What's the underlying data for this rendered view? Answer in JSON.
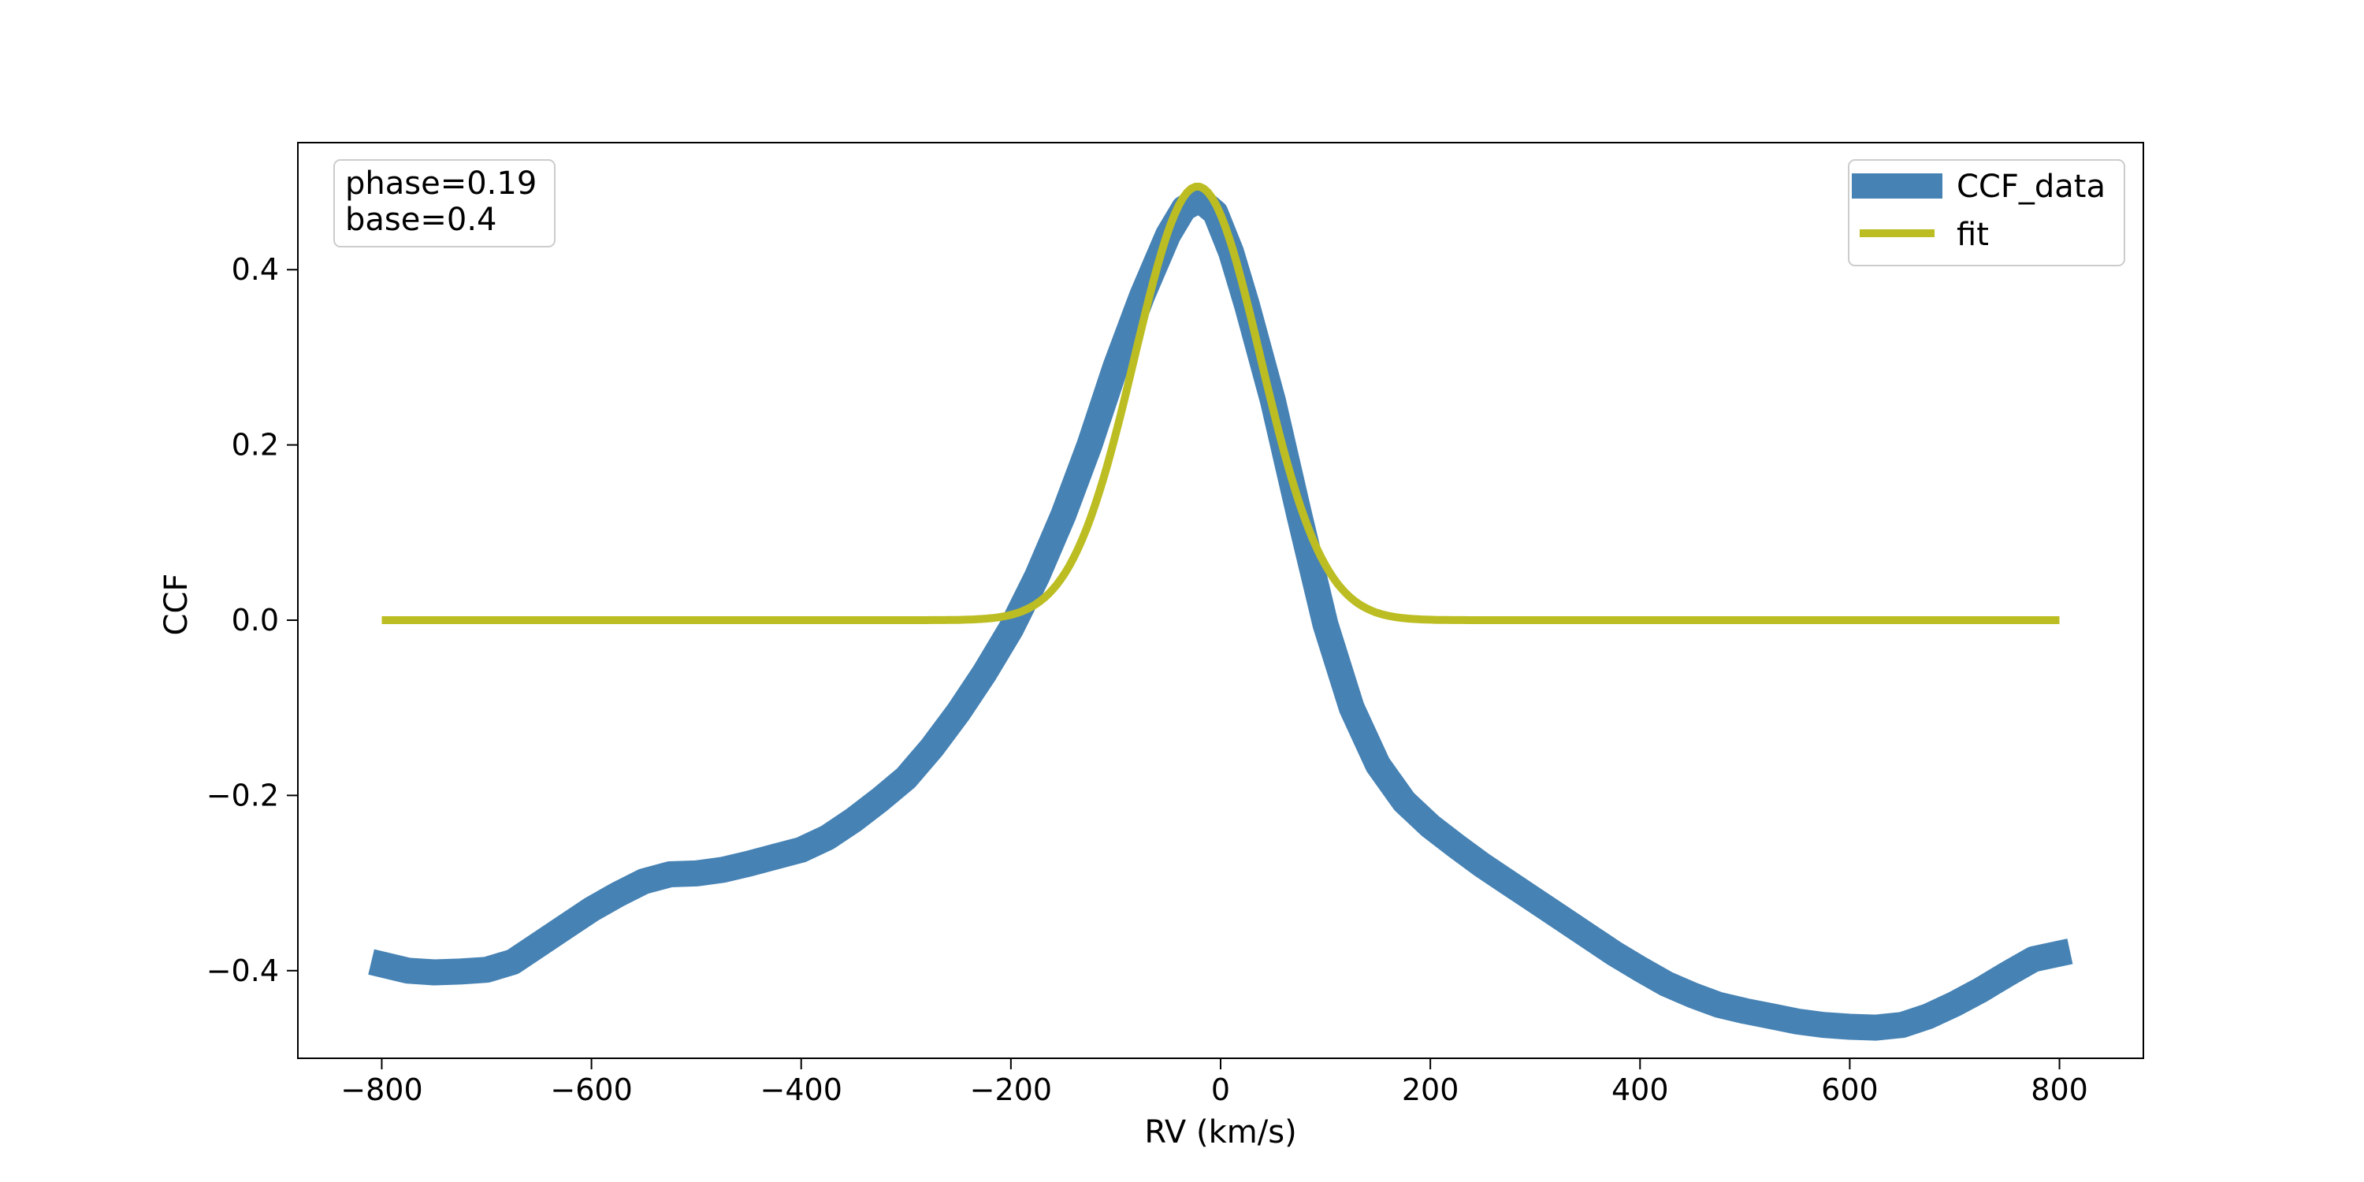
{
  "chart_data": {
    "type": "line",
    "xlabel": "RV (km/s)",
    "ylabel": "CCF",
    "xlim": [
      -880,
      880
    ],
    "ylim": [
      -0.5,
      0.545
    ],
    "xticks": [
      -800,
      -600,
      -400,
      -200,
      0,
      200,
      400,
      600,
      800
    ],
    "yticks": [
      -0.4,
      -0.2,
      0.0,
      0.2,
      0.4
    ],
    "xtick_labels": [
      "−800",
      "−600",
      "−400",
      "−200",
      "0",
      "200",
      "400",
      "600",
      "800"
    ],
    "ytick_labels": [
      "−0.4",
      "−0.2",
      "0.0",
      "0.2",
      "0.4"
    ],
    "grid": false,
    "legend_position": "top-right",
    "annotation": {
      "position": "top-left",
      "lines": [
        "phase=0.19",
        "base=0.4"
      ]
    },
    "series": [
      {
        "name": "CCF_data",
        "color": "#4682b4",
        "style": "thick",
        "x": [
          -810,
          -775,
          -750,
          -725,
          -700,
          -675,
          -650,
          -625,
          -600,
          -575,
          -550,
          -525,
          -500,
          -475,
          -450,
          -425,
          -400,
          -375,
          -350,
          -325,
          -300,
          -275,
          -250,
          -225,
          -200,
          -175,
          -150,
          -125,
          -100,
          -75,
          -50,
          -35,
          -20,
          -5,
          10,
          25,
          50,
          75,
          100,
          125,
          150,
          175,
          200,
          225,
          250,
          275,
          300,
          325,
          350,
          375,
          400,
          425,
          450,
          475,
          500,
          525,
          550,
          575,
          600,
          625,
          650,
          675,
          700,
          725,
          750,
          775,
          810
        ],
        "y": [
          -0.39,
          -0.4,
          -0.402,
          -0.401,
          -0.399,
          -0.39,
          -0.37,
          -0.35,
          -0.33,
          -0.313,
          -0.298,
          -0.29,
          -0.289,
          -0.285,
          -0.278,
          -0.27,
          -0.262,
          -0.248,
          -0.228,
          -0.205,
          -0.18,
          -0.145,
          -0.105,
          -0.06,
          -0.01,
          0.05,
          0.12,
          0.2,
          0.29,
          0.37,
          0.44,
          0.47,
          0.48,
          0.465,
          0.42,
          0.36,
          0.25,
          0.12,
          -0.005,
          -0.1,
          -0.165,
          -0.207,
          -0.235,
          -0.258,
          -0.28,
          -0.3,
          -0.32,
          -0.34,
          -0.36,
          -0.38,
          -0.398,
          -0.415,
          -0.428,
          -0.439,
          -0.446,
          -0.452,
          -0.458,
          -0.462,
          -0.464,
          -0.465,
          -0.462,
          -0.452,
          -0.438,
          -0.422,
          -0.404,
          -0.387,
          -0.378
        ]
      },
      {
        "name": "fit",
        "color": "#bcbd22",
        "style": "thin",
        "gaussian": {
          "amplitude": 0.495,
          "center": -22,
          "sigma": 60
        },
        "x_range": [
          -800,
          800
        ]
      }
    ]
  }
}
